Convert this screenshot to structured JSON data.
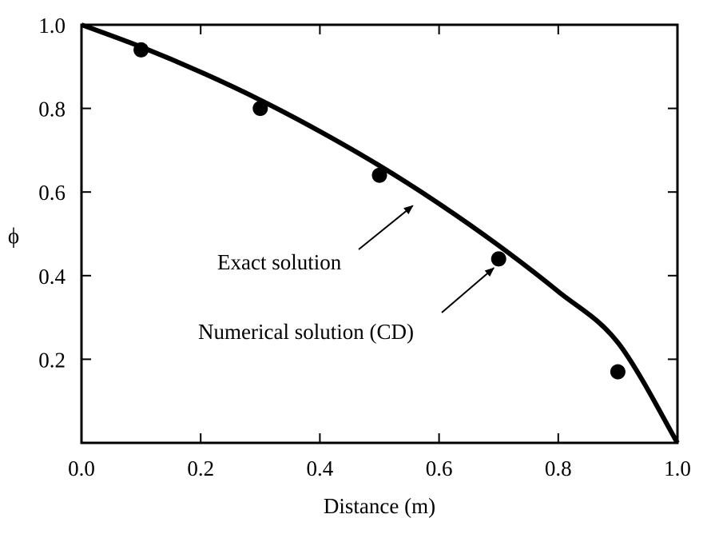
{
  "chart_data": {
    "type": "line",
    "xlabel": "Distance (m)",
    "ylabel": "ϕ",
    "xlim": [
      0.0,
      1.0
    ],
    "ylim": [
      0.0,
      1.0
    ],
    "grid": false,
    "x_ticks": [
      "0.0",
      "0.2",
      "0.4",
      "0.6",
      "0.8",
      "1.0"
    ],
    "y_ticks": [
      "0.2",
      "0.4",
      "0.6",
      "0.8",
      "1.0"
    ],
    "series": [
      {
        "style": "line",
        "x": [
          0.0,
          0.1,
          0.2,
          0.3,
          0.4,
          0.5,
          0.6,
          0.7,
          0.8,
          0.9,
          1.0
        ],
        "y": [
          1.0,
          0.947,
          0.887,
          0.82,
          0.745,
          0.663,
          0.572,
          0.472,
          0.362,
          0.24,
          0.0
        ]
      },
      {
        "style": "markers",
        "x": [
          0.1,
          0.3,
          0.5,
          0.7,
          0.9
        ],
        "y": [
          0.94,
          0.8,
          0.64,
          0.44,
          0.17
        ]
      }
    ],
    "annotations": [
      {
        "text": "Exact solution",
        "target": [
          0.56,
          0.575
        ]
      },
      {
        "text": "Numerical solution (CD)",
        "target": [
          0.7,
          0.43
        ]
      }
    ]
  }
}
